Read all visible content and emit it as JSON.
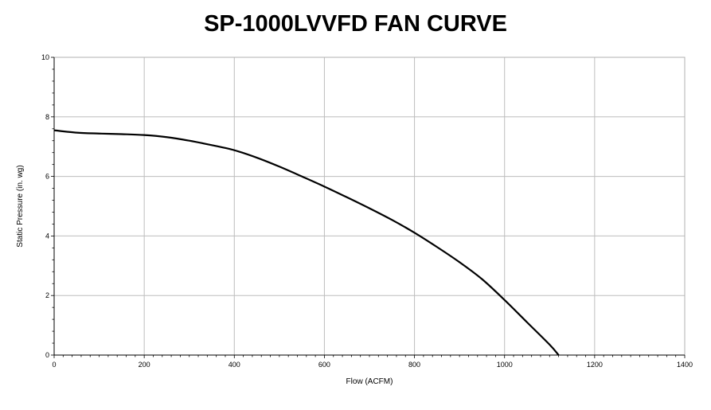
{
  "chart_data": {
    "type": "line",
    "title": "SP-1000LVVFD FAN CURVE",
    "xlabel": "Flow (ACFM)",
    "ylabel": "Static Pressure (in. wg)",
    "xlim": [
      0,
      1400
    ],
    "ylim": [
      0,
      10
    ],
    "x_ticks": [
      "0",
      "200",
      "400",
      "600",
      "800",
      "1000",
      "1200",
      "1400"
    ],
    "y_ticks": [
      "0",
      "2",
      "4",
      "6",
      "8",
      "10"
    ],
    "grid": true,
    "legend": "none",
    "line_color": "#000000",
    "series": [
      {
        "x": [
          0,
          50,
          100,
          150,
          200,
          250,
          300,
          350,
          400,
          450,
          500,
          550,
          600,
          650,
          700,
          750,
          800,
          850,
          900,
          950,
          1000,
          1050,
          1100,
          1120
        ],
        "y": [
          7.55,
          7.47,
          7.44,
          7.42,
          7.39,
          7.32,
          7.2,
          7.05,
          6.88,
          6.63,
          6.33,
          6.0,
          5.66,
          5.3,
          4.93,
          4.54,
          4.11,
          3.63,
          3.12,
          2.55,
          1.85,
          1.1,
          0.35,
          0.0
        ]
      }
    ]
  }
}
